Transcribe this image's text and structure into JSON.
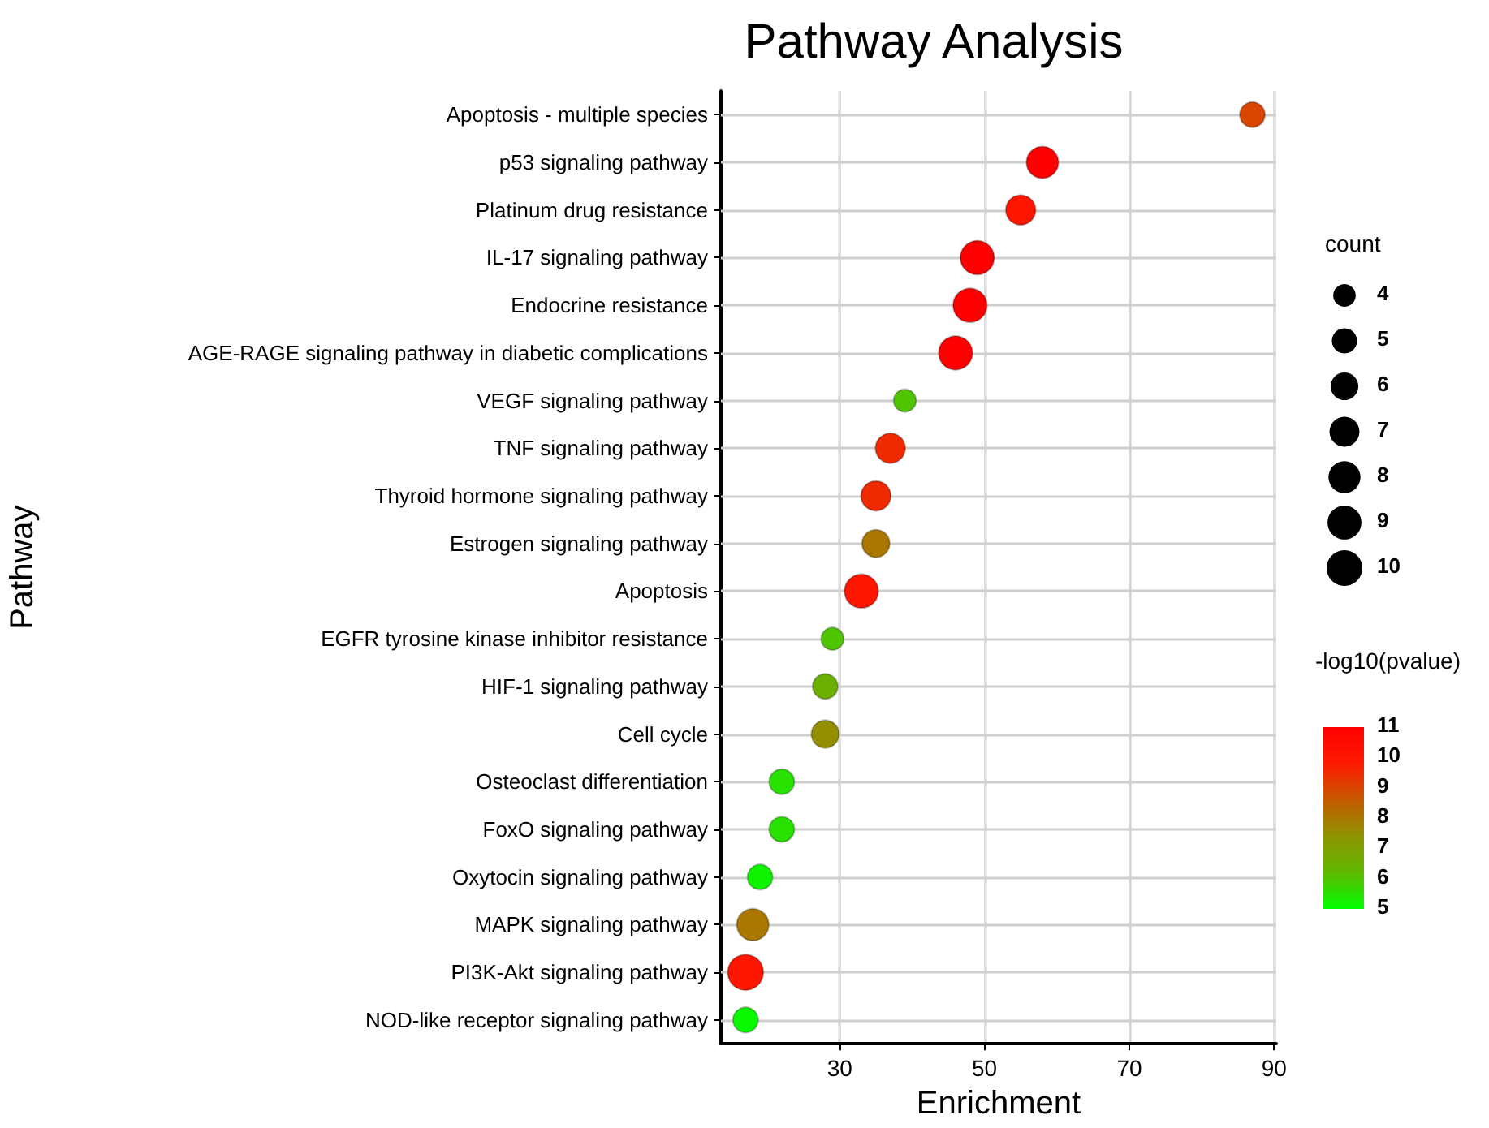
{
  "chart_data": {
    "type": "bubble",
    "title": "Pathway Analysis",
    "xlabel": "Enrichment",
    "ylabel": "Pathway",
    "legend_title": "count",
    "clabel": "-log10(pvalue)",
    "categories": [
      "Apoptosis - multiple species",
      "p53 signaling pathway",
      "Platinum drug resistance",
      "IL-17 signaling pathway",
      "Endocrine resistance",
      "AGE-RAGE signaling pathway in diabetic complications",
      "VEGF signaling pathway",
      "TNF signaling pathway",
      "Thyroid hormone signaling pathway",
      "Estrogen signaling pathway",
      "Apoptosis",
      "EGFR tyrosine kinase inhibitor resistance",
      "HIF-1 signaling pathway",
      "Cell cycle",
      "Osteoclast differentiation",
      "FoxO signaling pathway",
      "Oxytocin signaling pathway",
      "MAPK signaling pathway",
      "PI3K-Akt signaling pathway",
      "NOD-like receptor signaling pathway"
    ],
    "values": [
      87,
      58,
      55,
      49,
      48,
      46,
      39,
      37,
      35,
      35,
      33,
      29,
      28,
      28,
      22,
      22,
      19,
      18,
      17,
      17
    ],
    "sizes": [
      5,
      8,
      7,
      9,
      9,
      9,
      4,
      7,
      7,
      6,
      9,
      4,
      5,
      6,
      5,
      5,
      5,
      8,
      10,
      5
    ],
    "cvalues": [
      9,
      11,
      10,
      11,
      11,
      11,
      6,
      9.5,
      9.5,
      8,
      10,
      6,
      6.5,
      7.5,
      5.5,
      5.5,
      5.2,
      8,
      10,
      5.1
    ],
    "size_legend": [
      4,
      5,
      6,
      7,
      8,
      9,
      10
    ],
    "clim": [
      5,
      11
    ],
    "cticks": [
      5,
      6,
      7,
      8,
      9,
      10,
      11
    ],
    "xlim": [
      13.6,
      90.3
    ],
    "xticks": [
      30,
      50,
      70,
      90
    ],
    "orientation": "horizontal",
    "grid": true
  }
}
